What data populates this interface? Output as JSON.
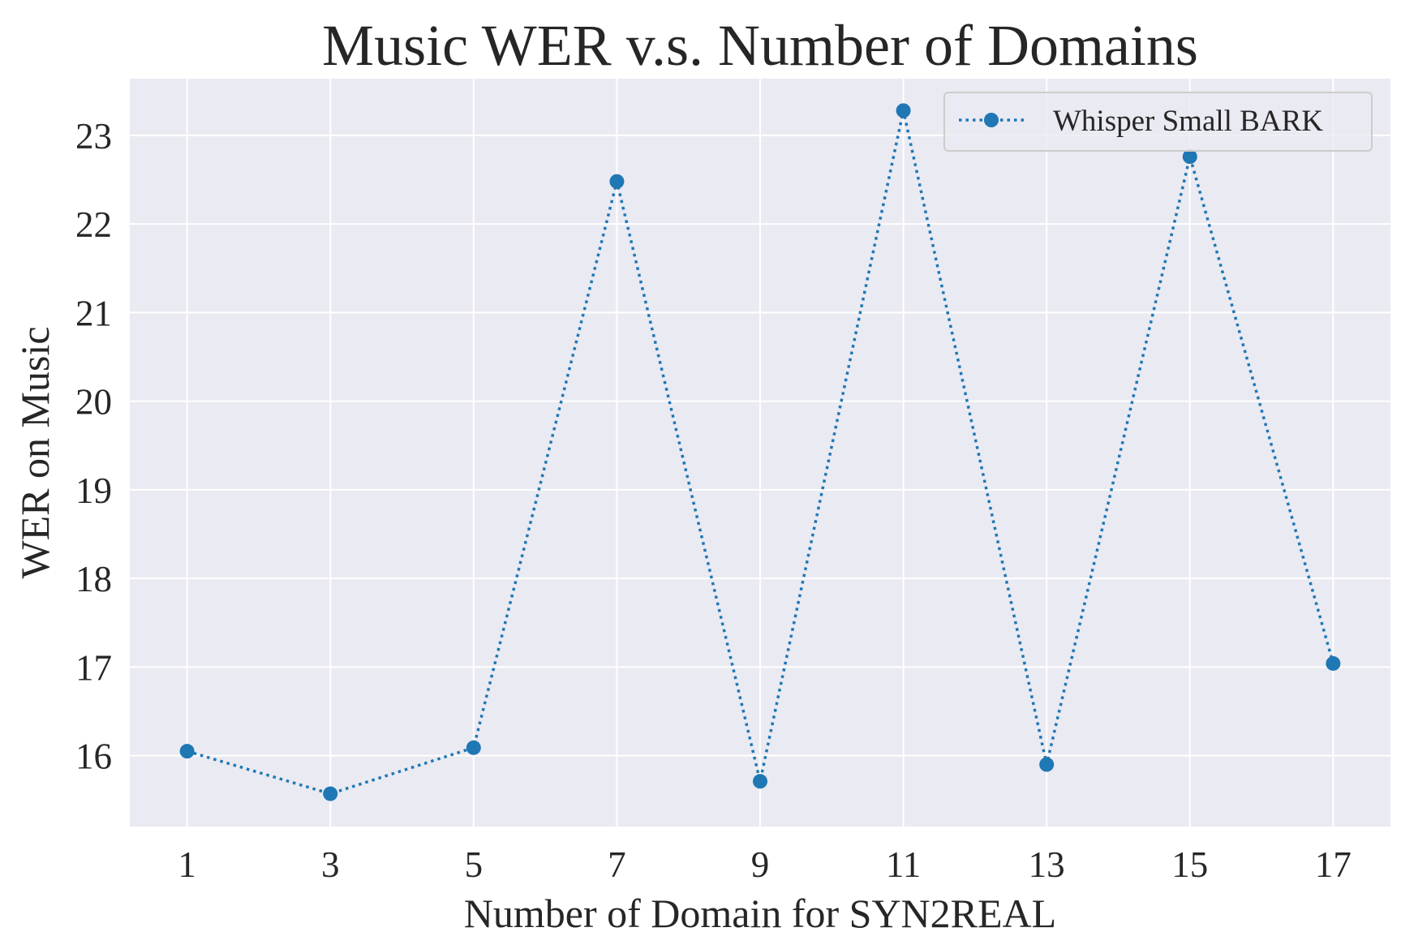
{
  "chart_data": {
    "type": "line",
    "title": "Music WER v.s. Number of Domains",
    "xlabel": "Number of Domain for SYN2REAL",
    "ylabel": "WER on Music",
    "x": [
      1,
      3,
      5,
      7,
      9,
      11,
      13,
      15,
      17
    ],
    "xticks": [
      1,
      3,
      5,
      7,
      9,
      11,
      13,
      15,
      17
    ],
    "yticks": [
      16,
      17,
      18,
      19,
      20,
      21,
      22,
      23
    ],
    "xlim": [
      0.2,
      17.8
    ],
    "ylim": [
      15.2,
      23.64
    ],
    "grid": true,
    "legend_position": "top-right",
    "background_color": "#eaeaf2",
    "series": [
      {
        "name": "Whisper Small BARK",
        "color": "#1f77b4",
        "line_style": "dotted",
        "marker": "circle",
        "values": [
          16.05,
          15.57,
          16.09,
          22.48,
          15.71,
          23.28,
          15.9,
          22.76,
          17.04
        ]
      }
    ]
  }
}
